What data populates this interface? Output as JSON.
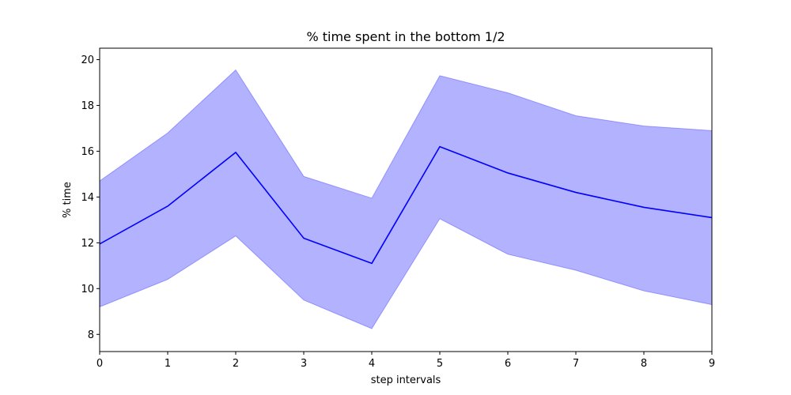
{
  "chart_data": {
    "type": "line",
    "title": "% time spent in the bottom 1/2",
    "xlabel": "step intervals",
    "ylabel": "% time",
    "xlim": [
      0,
      9
    ],
    "ylim": [
      7.25,
      20.5
    ],
    "x_ticks": [
      0,
      1,
      2,
      3,
      4,
      5,
      6,
      7,
      8,
      9
    ],
    "y_ticks": [
      8,
      10,
      12,
      14,
      16,
      18,
      20
    ],
    "grid": false,
    "legend": "none",
    "series": [
      {
        "x": [
          0,
          1,
          2,
          3,
          4,
          5,
          6,
          7,
          8,
          9
        ],
        "mean": [
          11.95,
          13.6,
          15.95,
          12.2,
          11.1,
          16.2,
          15.05,
          14.2,
          13.55,
          13.1
        ],
        "upper": [
          14.7,
          16.8,
          19.55,
          14.9,
          13.95,
          19.3,
          18.55,
          17.55,
          17.1,
          16.9
        ],
        "lower": [
          9.2,
          10.4,
          12.3,
          9.5,
          8.25,
          13.05,
          11.5,
          10.8,
          9.9,
          9.3
        ],
        "line_color": "#0000ff",
        "band_color": "#0000ff"
      }
    ]
  }
}
